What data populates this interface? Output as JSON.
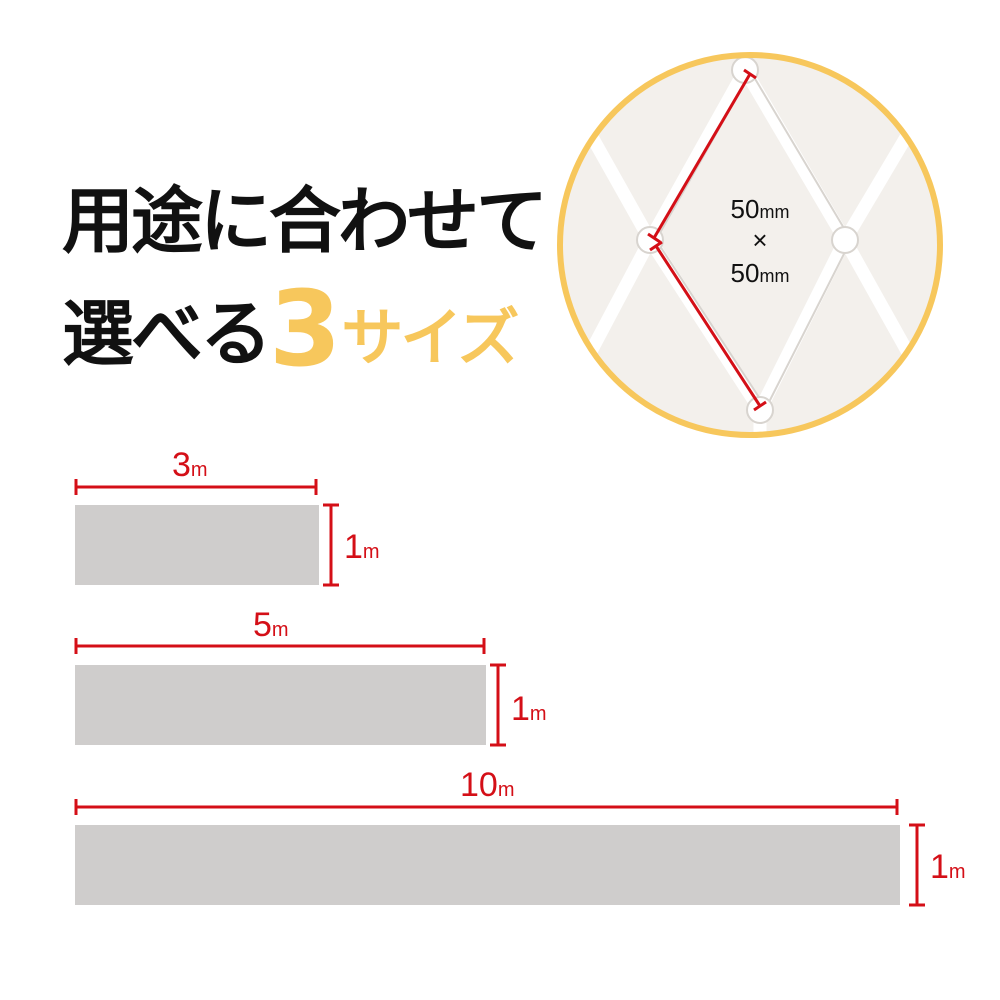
{
  "heading": {
    "line1": "用途に合わせて",
    "line2_prefix": "選べる",
    "line2_number": "3",
    "line2_suffix": "サイズ"
  },
  "mesh": {
    "dimension_line1_value": "50",
    "dimension_line1_unit": "mm",
    "times_sign": "×",
    "dimension_line2_value": "50",
    "dimension_line2_unit": "mm"
  },
  "sizes": [
    {
      "width_value": "3",
      "width_unit": "m",
      "height_value": "1",
      "height_unit": "m",
      "width_m": 3
    },
    {
      "width_value": "5",
      "width_unit": "m",
      "height_value": "1",
      "height_unit": "m",
      "width_m": 5
    },
    {
      "width_value": "10",
      "width_unit": "m",
      "height_value": "1",
      "height_unit": "m",
      "width_m": 10
    }
  ],
  "colors": {
    "accent_yellow": "#f7c75c",
    "dimension_red": "#d40f17",
    "net_gray": "#cfcdcc",
    "circle_fill": "#f3f0ec",
    "circle_border": "#f7c75c"
  }
}
